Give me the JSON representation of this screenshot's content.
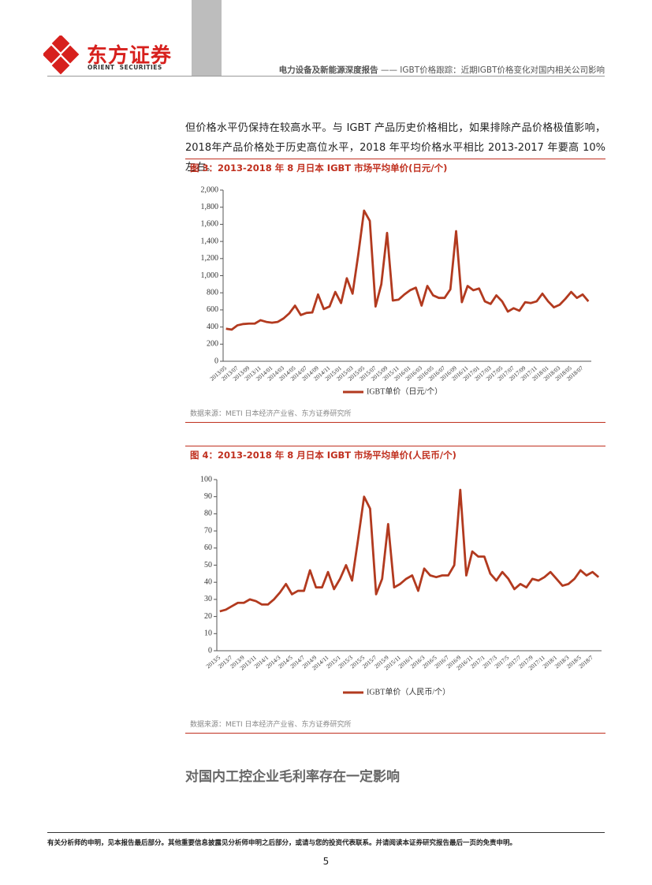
{
  "header": {
    "logo_cn": "东方证券",
    "logo_en": "ORIENT  SECURITIES",
    "report": "电力设备及新能源深度报告",
    "title": "—— IGBT价格跟踪：近期IGBT价格变化对国内相关公司影响"
  },
  "paragraph": "但价格水平仍保持在较高水平。与 IGBT 产品历史价格相比，如果排除产品价格极值影响，2018年产品价格处于历史高位水平，2018 年平均价格水平相比 2013-2017 年要高 10%左右。",
  "figures": [
    {
      "caption": "图 3：2013-2018 年 8 月日本 IGBT 市场平均单价(日元/个)",
      "source": "数据来源：METI 日本经济产业省、东方证券研究所",
      "chart_data": {
        "type": "line",
        "categories": [
          "2013/05",
          null,
          "2013/07",
          null,
          "2013/09",
          null,
          "2013/11",
          null,
          "2014/01",
          null,
          "2014/03",
          null,
          "2014/05",
          null,
          "2014/07",
          null,
          "2014/09",
          null,
          "2014/11",
          null,
          "2015/01",
          null,
          "2015/03",
          null,
          "2015/05",
          null,
          "2015/07",
          null,
          "2015/09",
          null,
          "2015/11",
          null,
          "2016/01",
          null,
          "2016/03",
          null,
          "2016/05",
          null,
          "2016/07",
          null,
          "2016/09",
          null,
          "2016/11",
          null,
          "2017/01",
          null,
          "2017/03",
          null,
          "2017/05",
          null,
          "2017/07",
          null,
          "2017/09",
          null,
          "2017/11",
          null,
          "2018/01",
          null,
          "2018/03",
          null,
          "2018/05",
          null,
          "2018/07",
          null
        ],
        "series": [
          {
            "name": "IGBT单价（日元/个）",
            "color": "#b23a1f",
            "values": [
              380,
              370,
              420,
              435,
              440,
              440,
              480,
              460,
              450,
              460,
              500,
              560,
              650,
              540,
              565,
              570,
              780,
              610,
              640,
              810,
              680,
              970,
              790,
              1250,
              1760,
              1640,
              640,
              900,
              1500,
              710,
              720,
              780,
              830,
              860,
              650,
              880,
              770,
              740,
              740,
              840,
              1520,
              690,
              880,
              830,
              850,
              700,
              670,
              770,
              700,
              580,
              620,
              590,
              690,
              680,
              700,
              790,
              700,
              630,
              660,
              730,
              810,
              740,
              780,
              700
            ]
          }
        ],
        "ylim": [
          0,
          2000
        ],
        "yticks": [
          0,
          200,
          400,
          600,
          800,
          {
            "value": 1000,
            "label": "1,000"
          },
          {
            "value": 1200,
            "label": "1,200"
          },
          {
            "value": 1400,
            "label": "1,400"
          },
          {
            "value": 1600,
            "label": "1,600"
          },
          {
            "value": 1800,
            "label": "1,800"
          },
          {
            "value": 2000,
            "label": "2,000"
          }
        ]
      }
    },
    {
      "caption": "图 4：2013-2018 年 8 月日本 IGBT 市场平均单价(人民币/个)",
      "source": "数据来源：METI 日本经济产业省、东方证券研究所",
      "chart_data": {
        "type": "line",
        "categories": [
          "2013/5",
          null,
          "2013/7",
          null,
          "2013/9",
          null,
          "2013/11",
          null,
          "2014/1",
          null,
          "2014/3",
          null,
          "2014/5",
          null,
          "2014/7",
          null,
          "2014/9",
          null,
          "2014/11",
          null,
          "2015/1",
          null,
          "2015/3",
          null,
          "2015/5",
          null,
          "2015/7",
          null,
          "2015/9",
          null,
          "2015/11",
          null,
          "2016/1",
          null,
          "2016/3",
          null,
          "2016/5",
          null,
          "2016/7",
          null,
          "2016/9",
          null,
          "2016/11",
          null,
          "2017/1",
          null,
          "2017/3",
          null,
          "2017/5",
          null,
          "2017/7",
          null,
          "2017/9",
          null,
          "2017/11",
          null,
          "2018/1",
          null,
          "2018/3",
          null,
          "2018/5",
          null,
          "2018/7",
          null
        ],
        "series": [
          {
            "name": "IGBT单价（人民币/个）",
            "color": "#b23a1f",
            "values": [
              23,
              24,
              26,
              28,
              28,
              30,
              29,
              27,
              27,
              30,
              34,
              39,
              33,
              35,
              35,
              47,
              37,
              37,
              46,
              36,
              42,
              50,
              41,
              65,
              90,
              83,
              33,
              42,
              74,
              37,
              39,
              42,
              44,
              35,
              48,
              44,
              43,
              44,
              44,
              50,
              94,
              44,
              58,
              55,
              55,
              45,
              41,
              46,
              42,
              36,
              39,
              37,
              42,
              41,
              43,
              46,
              42,
              38,
              39,
              42,
              47,
              44,
              46,
              43
            ]
          }
        ],
        "ylim": [
          0,
          100
        ],
        "yticks": [
          0,
          10,
          20,
          30,
          40,
          50,
          60,
          70,
          80,
          90,
          100
        ]
      }
    }
  ],
  "section_heading": "对国内工控企业毛利率存在一定影响",
  "footer": {
    "disclaimer": "有关分析师的申明，见本报告最后部分。其他重要信息披露见分析师申明之后部分，或请与您的投资代表联系。并请阅读本证券研究报告最后一页的免责申明。",
    "page": "5"
  }
}
